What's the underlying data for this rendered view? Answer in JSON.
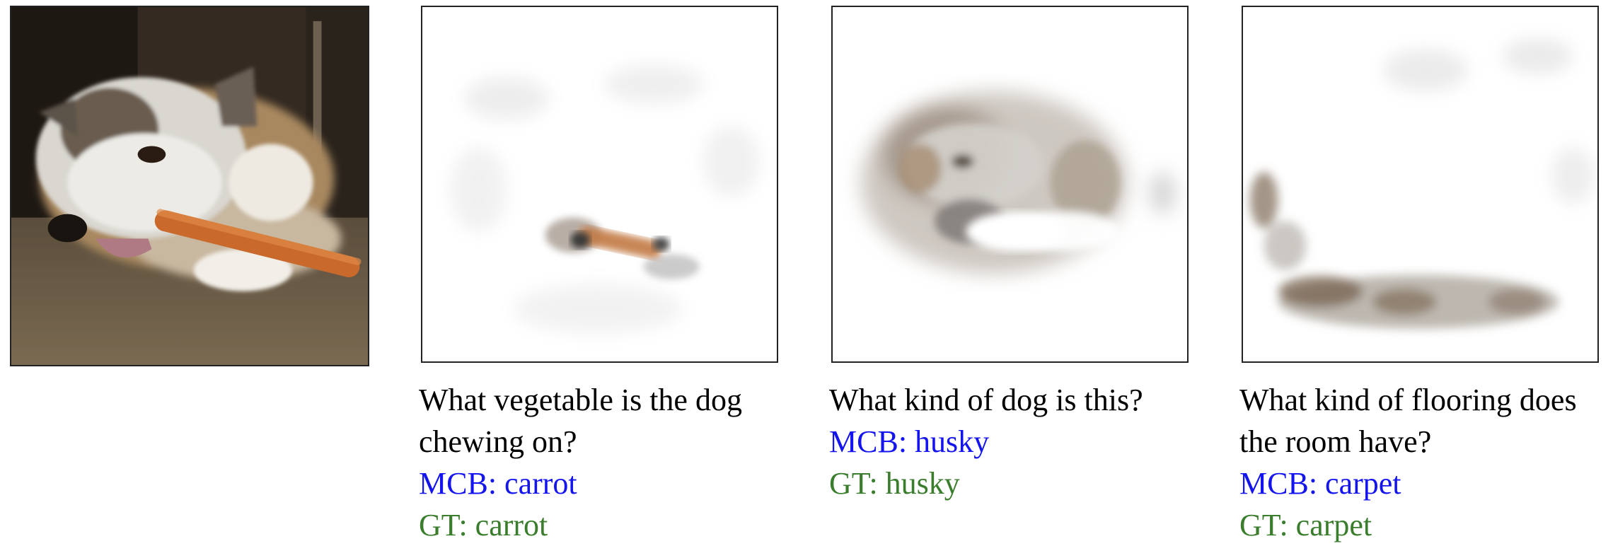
{
  "figure": {
    "colors": {
      "mcb": "#1414f0",
      "gt": "#3a7d2c",
      "border": "#222222"
    },
    "original_image": {},
    "panels": [
      {
        "question_lines": [
          "What vegetable is the dog",
          "chewing on?"
        ],
        "mcb": "MCB: carrot",
        "gt": "GT: carrot"
      },
      {
        "question_lines": [
          "What kind of dog is this?"
        ],
        "mcb": "MCB: husky",
        "gt": "GT: husky"
      },
      {
        "question_lines": [
          "What kind of flooring does",
          "the room have?"
        ],
        "mcb": "MCB: carpet",
        "gt": "GT: carpet"
      }
    ]
  }
}
